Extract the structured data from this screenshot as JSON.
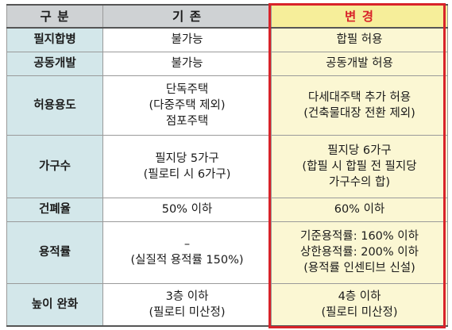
{
  "header": {
    "category": "구 분",
    "existing": "기 존",
    "changed": "변 경"
  },
  "rows": [
    {
      "label": "필지합병",
      "existing": [
        "불가능"
      ],
      "changed": [
        "합필 허용"
      ]
    },
    {
      "label": "공동개발",
      "existing": [
        "불가능"
      ],
      "changed": [
        "공동개발 허용"
      ]
    },
    {
      "label": "허용용도",
      "existing": [
        "단독주택",
        "(다중주택 제외)",
        "점포주택"
      ],
      "changed": [
        "다세대주택 추가 허용",
        "(건축물대장 전환 제외)"
      ]
    },
    {
      "label": "가구수",
      "existing": [
        "필지당 5가구",
        "(필로티 시 6가구)"
      ],
      "changed": [
        "필지당 6가구",
        "(합필 시 합필 전 필지당",
        "가구수의 합)"
      ]
    },
    {
      "label": "건폐율",
      "existing": [
        "50% 이하"
      ],
      "changed": [
        "60% 이하"
      ]
    },
    {
      "label": "용적률",
      "existing": [
        "–",
        "(실질적 용적률 150%)"
      ],
      "changed": [
        "기준용적률: 160% 이하",
        "상한용적률: 200% 이하",
        "(용적률 인센티브 신설)"
      ]
    },
    {
      "label": "높이 완화",
      "existing": [
        "3층 이하",
        "(필로티 미산정)"
      ],
      "changed": [
        "4층 이하",
        "(필로티 미산정)"
      ]
    }
  ],
  "colors": {
    "highlight_border": "#d8232a",
    "changed_bg": "#fbf7d3",
    "label_bg": "#d3e7ea",
    "header_bg": "#cfd2d4"
  }
}
